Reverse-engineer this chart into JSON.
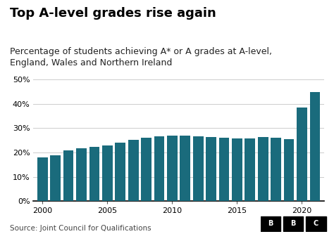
{
  "title": "Top A-level grades rise again",
  "subtitle": "Percentage of students achieving A* or A grades at A-level,\nEngland, Wales and Northern Ireland",
  "source": "Source: Joint Council for Qualifications",
  "years": [
    2000,
    2001,
    2002,
    2003,
    2004,
    2005,
    2006,
    2007,
    2008,
    2009,
    2010,
    2011,
    2012,
    2013,
    2014,
    2015,
    2016,
    2017,
    2018,
    2019,
    2020,
    2021
  ],
  "values": [
    18.0,
    19.0,
    21.0,
    21.7,
    22.4,
    22.8,
    24.1,
    25.3,
    26.0,
    26.7,
    27.0,
    27.0,
    26.6,
    26.3,
    26.0,
    25.9,
    25.8,
    26.3,
    26.2,
    25.5,
    38.6,
    44.8
  ],
  "bar_color": "#1a6b7c",
  "bg_color": "#ffffff",
  "ylim": [
    0,
    50
  ],
  "yticks": [
    0,
    10,
    20,
    30,
    40,
    50
  ],
  "xticks": [
    2000,
    2005,
    2010,
    2015,
    2020
  ],
  "grid_color": "#cccccc",
  "title_fontsize": 13,
  "subtitle_fontsize": 9,
  "source_fontsize": 7.5,
  "tick_fontsize": 8
}
